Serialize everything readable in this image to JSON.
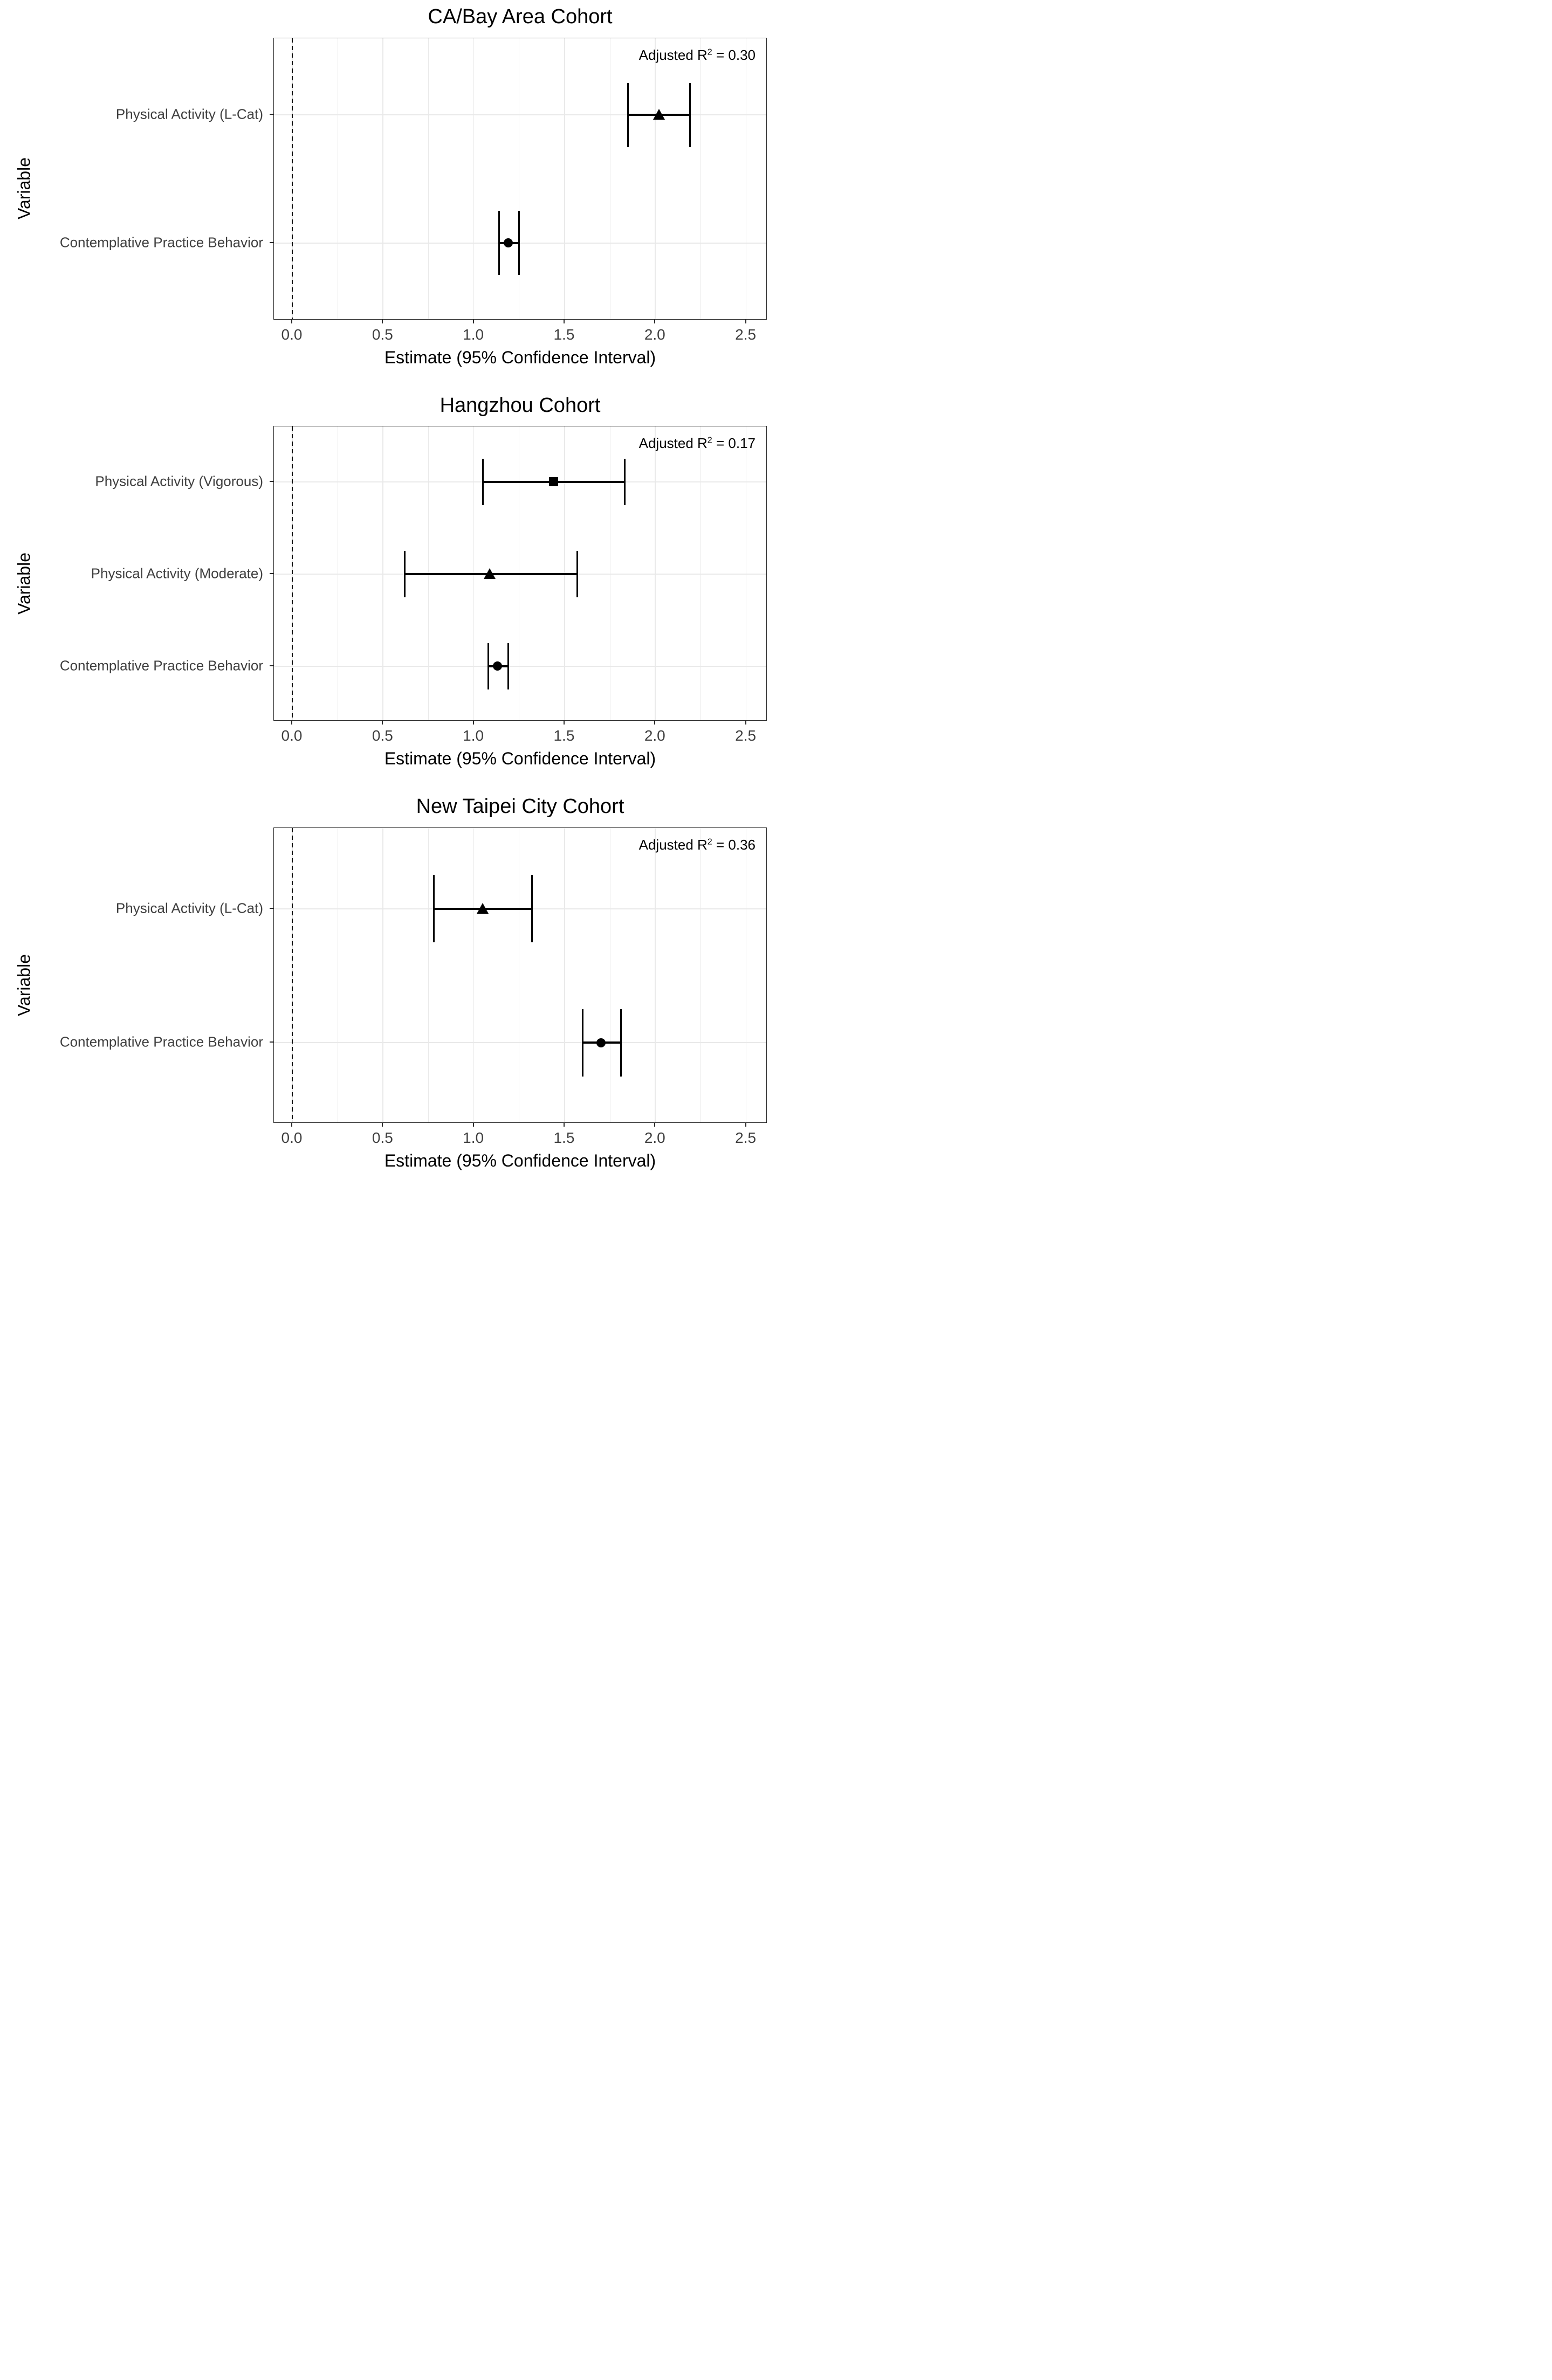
{
  "figure": {
    "x_ticks": [
      "0.0",
      "0.5",
      "1.0",
      "1.5",
      "2.0",
      "2.5"
    ],
    "x_tick_values": [
      0,
      0.5,
      1.0,
      1.5,
      2.0,
      2.5
    ],
    "grid_step": 0.25,
    "colors": {
      "marker": "#000000",
      "gridline": "#e9e9e9",
      "axis_text": "#3f3f3f",
      "panel_border": "#2b2b2b"
    }
  },
  "chart_data": [
    {
      "type": "scatter",
      "title": "CA/Bay Area Cohort",
      "xlabel": "Estimate (95% Confidence Interval)",
      "ylabel": "Variable",
      "xlim": [
        -0.1,
        2.62
      ],
      "x_ticks": [
        "0.0",
        "0.5",
        "1.0",
        "1.5",
        "2.0",
        "2.5"
      ],
      "zero_reference_line": 0,
      "adjusted_r2": 0.3,
      "annotation": {
        "prefix": "Adjusted R",
        "sup": "2",
        "suffix": " = 0.30"
      },
      "rows": [
        {
          "label": "Physical Activity (L-Cat)",
          "estimate": 2.02,
          "ci_low": 1.85,
          "ci_high": 2.19,
          "marker": "triangle"
        },
        {
          "label": "Contemplative Practice Behavior",
          "estimate": 1.19,
          "ci_low": 1.14,
          "ci_high": 1.25,
          "marker": "circle"
        }
      ]
    },
    {
      "type": "scatter",
      "title": "Hangzhou Cohort",
      "xlabel": "Estimate (95% Confidence Interval)",
      "ylabel": "Variable",
      "xlim": [
        -0.1,
        2.62
      ],
      "x_ticks": [
        "0.0",
        "0.5",
        "1.0",
        "1.5",
        "2.0",
        "2.5"
      ],
      "zero_reference_line": 0,
      "adjusted_r2": 0.17,
      "annotation": {
        "prefix": "Adjusted R",
        "sup": "2",
        "suffix": " = 0.17"
      },
      "rows": [
        {
          "label": "Physical Activity (Vigorous)",
          "estimate": 1.44,
          "ci_low": 1.05,
          "ci_high": 1.83,
          "marker": "square"
        },
        {
          "label": "Physical Activity (Moderate)",
          "estimate": 1.09,
          "ci_low": 0.62,
          "ci_high": 1.57,
          "marker": "triangle"
        },
        {
          "label": "Contemplative Practice Behavior",
          "estimate": 1.13,
          "ci_low": 1.08,
          "ci_high": 1.19,
          "marker": "circle"
        }
      ]
    },
    {
      "type": "scatter",
      "title": "New Taipei City Cohort",
      "xlabel": "Estimate (95% Confidence Interval)",
      "ylabel": "Variable",
      "xlim": [
        -0.1,
        2.62
      ],
      "x_ticks": [
        "0.0",
        "0.5",
        "1.0",
        "1.5",
        "2.0",
        "2.5"
      ],
      "zero_reference_line": 0,
      "adjusted_r2": 0.36,
      "annotation": {
        "prefix": "Adjusted R",
        "sup": "2",
        "suffix": " = 0.36"
      },
      "rows": [
        {
          "label": "Physical Activity (L-Cat)",
          "estimate": 1.05,
          "ci_low": 0.78,
          "ci_high": 1.32,
          "marker": "triangle"
        },
        {
          "label": "Contemplative Practice Behavior",
          "estimate": 1.7,
          "ci_low": 1.6,
          "ci_high": 1.81,
          "marker": "circle"
        }
      ]
    }
  ]
}
